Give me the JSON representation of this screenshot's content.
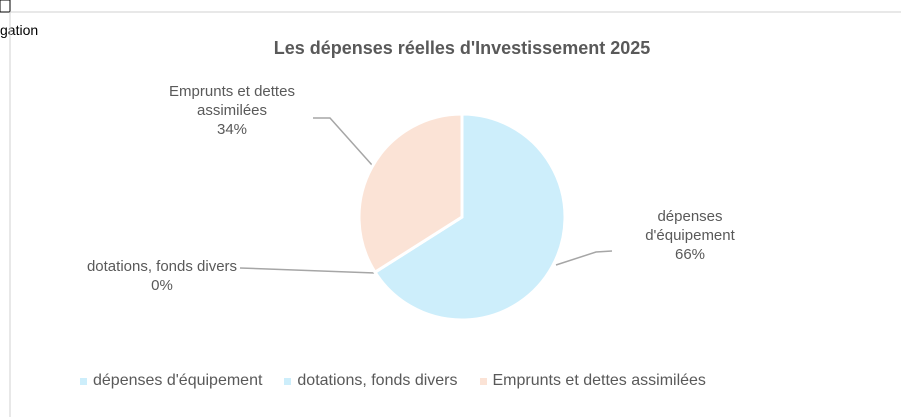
{
  "page_text": "gation",
  "chart_data": {
    "type": "pie",
    "title": "Les dépenses réelles d'Investissement 2025",
    "categories": [
      "dépenses d'équipement",
      "dotations, fonds divers",
      "Emprunts et dettes assimilées"
    ],
    "values": [
      66,
      0,
      34
    ],
    "value_labels": [
      "66%",
      "0%",
      "34%"
    ],
    "colors": [
      "#cdeefb",
      "#cdeefb",
      "#fbe3d6"
    ],
    "legend": "bottom"
  }
}
